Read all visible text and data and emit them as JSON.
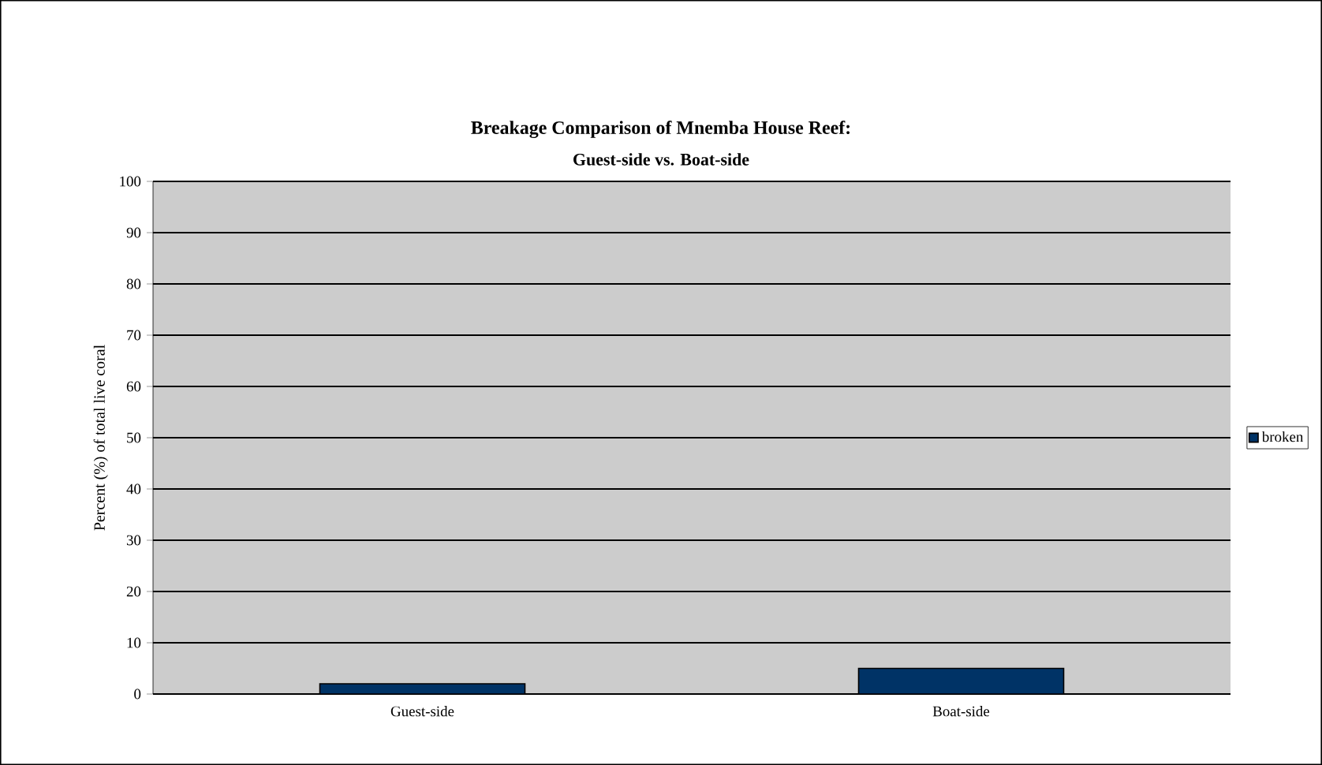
{
  "chart_data": {
    "type": "bar",
    "title": "Breakage Comparison of Mnemba House Reef:",
    "subtitle": "Guest-side vs. Boat-side",
    "ylabel": "Percent (%) of total live coral",
    "categories": [
      "Guest-side",
      "Boat-side"
    ],
    "series": [
      {
        "name": "broken",
        "color": "#003366",
        "values": [
          2,
          5
        ]
      }
    ],
    "ylim": [
      0,
      100
    ],
    "yticks": [
      0,
      10,
      20,
      30,
      40,
      50,
      60,
      70,
      80,
      90,
      100
    ],
    "grid": "y",
    "legend": "right"
  }
}
